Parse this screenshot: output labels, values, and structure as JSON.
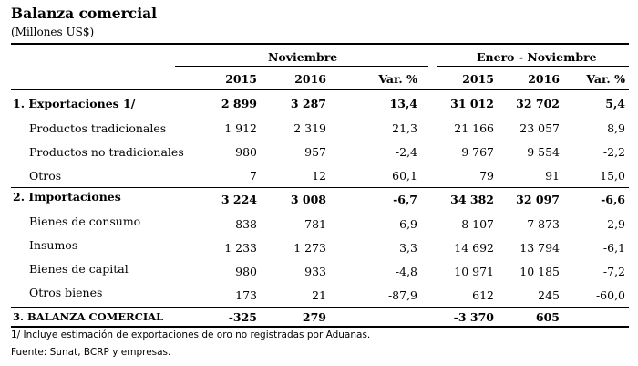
{
  "title": "Balanza comercial",
  "subtitle": "(Millones US$)",
  "header": {
    "group_left": "Noviembre",
    "group_right": "Enero - Noviembre",
    "columns": [
      "2015",
      "2016",
      "Var. %",
      "2015",
      "2016",
      "Var. %"
    ]
  },
  "rows": [
    {
      "label": "1. Exportaciones 1/",
      "values": [
        "2 899",
        "3 287",
        "13,4",
        "31 012",
        "32 702",
        "5,4"
      ]
    },
    {
      "label": "Productos tradicionales",
      "values": [
        "1 912",
        "2 319",
        "21,3",
        "21 166",
        "23 057",
        "8,9"
      ]
    },
    {
      "label": "Productos no tradicionales",
      "values": [
        "980",
        "957",
        "-2,4",
        "9 767",
        "9 554",
        "-2,2"
      ]
    },
    {
      "label": "Otros",
      "values": [
        "7",
        "12",
        "60,1",
        "79",
        "91",
        "15,0"
      ]
    },
    {
      "label": "2. Importaciones",
      "values": [
        "3 224",
        "3 008",
        "-6,7",
        "34 382",
        "32 097",
        "-6,6"
      ]
    },
    {
      "label": "Bienes de consumo",
      "values": [
        "838",
        "781",
        "-6,9",
        "8 107",
        "7 873",
        "-2,9"
      ]
    },
    {
      "label": "Insumos",
      "values": [
        "1 233",
        "1 273",
        "3,3",
        "14 692",
        "13 794",
        "-6,1"
      ]
    },
    {
      "label": "Bienes de capital",
      "values": [
        "980",
        "933",
        "-4,8",
        "10 971",
        "10 185",
        "-7,2"
      ]
    },
    {
      "label": "Otros bienes",
      "values": [
        "173",
        "21",
        "-87,9",
        "612",
        "245",
        "-60,0"
      ]
    },
    {
      "label": "3. BALANZA COMERCIAL",
      "values": [
        "-325",
        "279",
        "",
        "-3 370",
        "605",
        ""
      ]
    }
  ],
  "footnotes": [
    "1/ Incluye estimación de exportaciones de oro no registradas por Aduanas.",
    "Fuente: Sunat, BCRP y empresas."
  ]
}
